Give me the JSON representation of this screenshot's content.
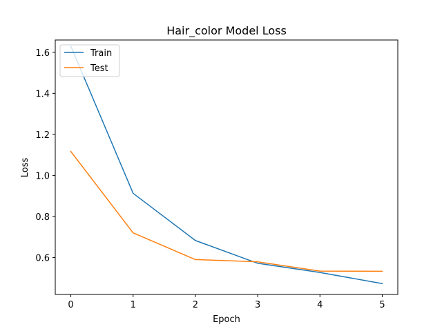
{
  "chart_data": {
    "type": "line",
    "title": "Hair_color Model Loss",
    "xlabel": "Epoch",
    "ylabel": "Loss",
    "x": [
      0,
      1,
      2,
      3,
      4,
      5
    ],
    "xlim": [
      -0.25,
      5.25
    ],
    "ylim": [
      0.42,
      1.66
    ],
    "xticks": [
      0,
      1,
      2,
      3,
      4,
      5
    ],
    "yticks": [
      0.6,
      0.8,
      1.0,
      1.2,
      1.4,
      1.6
    ],
    "grid": false,
    "legend_position": "top-left",
    "series": [
      {
        "name": "Train",
        "color": "#1f77b4",
        "values": [
          1.63,
          0.913,
          0.683,
          0.572,
          0.527,
          0.473
        ]
      },
      {
        "name": "Test",
        "color": "#ff7f0e",
        "values": [
          1.117,
          0.72,
          0.59,
          0.579,
          0.534,
          0.533
        ]
      }
    ]
  }
}
